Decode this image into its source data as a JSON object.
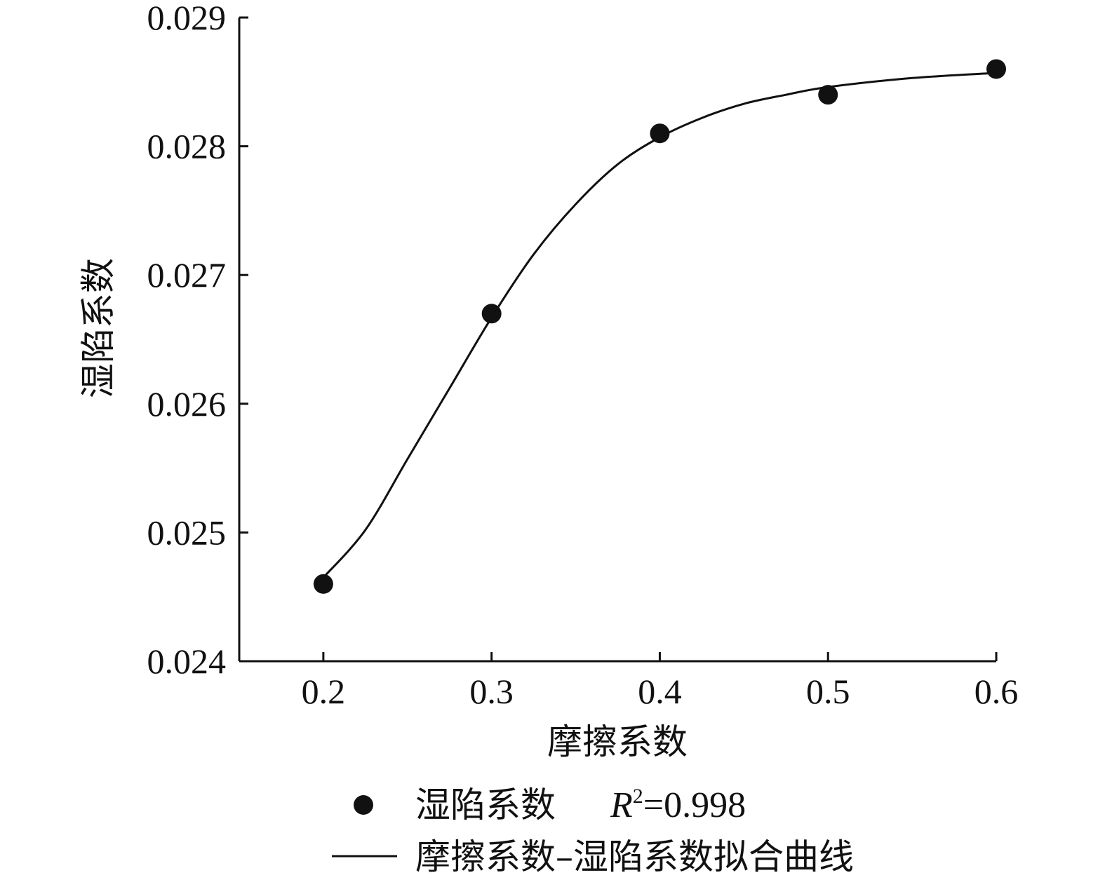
{
  "chart_data": {
    "type": "scatter",
    "xlabel": "摩擦系数",
    "ylabel": "湿陷系数",
    "xlim": [
      0.15,
      0.6
    ],
    "ylim": [
      0.024,
      0.029
    ],
    "x_ticks": [
      "0.2",
      "0.3",
      "0.4",
      "0.5",
      "0.6"
    ],
    "y_ticks": [
      "0.024",
      "0.025",
      "0.026",
      "0.027",
      "0.028",
      "0.029"
    ],
    "grid": false,
    "legend_position": "bottom",
    "series": [
      {
        "name": "湿陷系数",
        "kind": "scatter",
        "x": [
          0.2,
          0.3,
          0.4,
          0.5,
          0.6
        ],
        "y": [
          0.0246,
          0.0267,
          0.0281,
          0.0284,
          0.0286
        ]
      },
      {
        "name": "摩擦系数–湿陷系数拟合曲线",
        "kind": "line",
        "x": [
          0.2,
          0.225,
          0.25,
          0.275,
          0.3,
          0.325,
          0.35,
          0.375,
          0.4,
          0.425,
          0.45,
          0.475,
          0.5,
          0.55,
          0.6
        ],
        "y": [
          0.02465,
          0.02502,
          0.02557,
          0.02612,
          0.02667,
          0.02716,
          0.02755,
          0.02786,
          0.02807,
          0.02822,
          0.02833,
          0.0284,
          0.02846,
          0.02853,
          0.02857
        ]
      }
    ],
    "legend": {
      "scatter_label": "湿陷系数",
      "r2_symbol": "R",
      "r2_exponent": "2",
      "r2_value": "=0.998",
      "line_label": "摩擦系数–湿陷系数拟合曲线"
    },
    "colors": {
      "marker": "#111111",
      "line": "#111111",
      "axis": "#111111"
    }
  }
}
